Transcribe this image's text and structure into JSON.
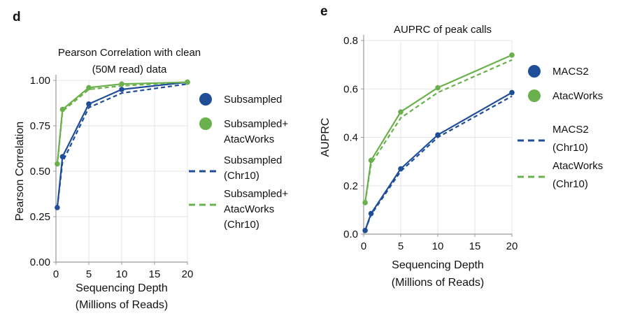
{
  "colors": {
    "macs": "#1f4e98",
    "atac": "#6ab04c",
    "axis": "#999999",
    "grid": "#e6e6e6"
  },
  "chart_data": [
    {
      "panel": "d",
      "type": "line",
      "title": [
        "Pearson Correlation with clean",
        "(50M read) data"
      ],
      "xlabel": [
        "Sequencing Depth",
        "(Millions of Reads)"
      ],
      "ylabel": "Pearson Correlation",
      "xlim": [
        0,
        20
      ],
      "ylim": [
        0,
        1
      ],
      "xticks": [
        0,
        5,
        10,
        15,
        20
      ],
      "yticks": [
        0,
        0.25,
        0.5,
        0.75,
        1.0
      ],
      "ytick_labels": [
        "0.00",
        "0.25",
        "0.50",
        "0.75",
        "1.00"
      ],
      "grid": true,
      "series": [
        {
          "name": "Subsampled",
          "style": "solid",
          "color": "macs",
          "markers": true,
          "x": [
            0.2,
            1,
            5,
            10,
            20
          ],
          "y": [
            0.3,
            0.58,
            0.87,
            0.95,
            0.99
          ]
        },
        {
          "name": "Subsampled+ AtacWorks",
          "style": "solid",
          "color": "atac",
          "markers": true,
          "x": [
            0.2,
            1,
            5,
            10,
            20
          ],
          "y": [
            0.54,
            0.84,
            0.96,
            0.98,
            0.99
          ]
        },
        {
          "name": "Subsampled (Chr10)",
          "style": "dashed",
          "color": "macs",
          "markers": false,
          "x": [
            0.2,
            1,
            5,
            10,
            20
          ],
          "y": [
            0.3,
            0.55,
            0.85,
            0.93,
            0.98
          ]
        },
        {
          "name": "Subsampled+ AtacWorks (Chr10)",
          "style": "dashed",
          "color": "atac",
          "markers": false,
          "x": [
            0.2,
            1,
            5,
            10,
            20
          ],
          "y": [
            0.53,
            0.83,
            0.95,
            0.97,
            0.99
          ]
        }
      ],
      "legend": [
        {
          "kind": "marker",
          "color": "macs",
          "lines": [
            "Subsampled"
          ]
        },
        {
          "kind": "marker",
          "color": "atac",
          "lines": [
            "Subsampled+",
            "AtacWorks"
          ]
        },
        {
          "kind": "dash",
          "color": "macs",
          "lines": [
            "Subsampled",
            "(Chr10)"
          ]
        },
        {
          "kind": "dash",
          "color": "atac",
          "lines": [
            "Subsampled+",
            "AtacWorks",
            "(Chr10)"
          ]
        }
      ]
    },
    {
      "panel": "e",
      "type": "line",
      "title": [
        "AUPRC of peak calls"
      ],
      "xlabel": [
        "Sequencing Depth",
        "(Millions of Reads)"
      ],
      "ylabel": "AUPRC",
      "xlim": [
        0,
        20
      ],
      "ylim": [
        0,
        0.8
      ],
      "xticks": [
        0,
        5,
        10,
        15,
        20
      ],
      "yticks": [
        0,
        0.2,
        0.4,
        0.6,
        0.8
      ],
      "ytick_labels": [
        "0.0",
        "0.2",
        "0.4",
        "0.6",
        "0.8"
      ],
      "grid": true,
      "series": [
        {
          "name": "MACS2",
          "style": "solid",
          "color": "macs",
          "markers": true,
          "x": [
            0.2,
            1,
            5,
            10,
            20
          ],
          "y": [
            0.015,
            0.085,
            0.27,
            0.41,
            0.585
          ]
        },
        {
          "name": "AtacWorks",
          "style": "solid",
          "color": "atac",
          "markers": true,
          "x": [
            0.2,
            1,
            5,
            10,
            20
          ],
          "y": [
            0.13,
            0.305,
            0.505,
            0.605,
            0.74
          ]
        },
        {
          "name": "MACS2 (Chr10)",
          "style": "dashed",
          "color": "macs",
          "markers": false,
          "x": [
            0.2,
            1,
            5,
            10,
            20
          ],
          "y": [
            0.015,
            0.08,
            0.26,
            0.4,
            0.57
          ]
        },
        {
          "name": "AtacWorks (Chr10)",
          "style": "dashed",
          "color": "atac",
          "markers": false,
          "x": [
            0.2,
            1,
            5,
            10,
            20
          ],
          "y": [
            0.13,
            0.29,
            0.48,
            0.585,
            0.72
          ]
        }
      ],
      "legend": [
        {
          "kind": "marker",
          "color": "macs",
          "lines": [
            "MACS2"
          ]
        },
        {
          "kind": "marker",
          "color": "atac",
          "lines": [
            "AtacWorks"
          ]
        },
        {
          "kind": "dash",
          "color": "macs",
          "lines": [
            "MACS2",
            "(Chr10)"
          ]
        },
        {
          "kind": "dash",
          "color": "atac",
          "lines": [
            "AtacWorks",
            "(Chr10)"
          ]
        }
      ]
    }
  ]
}
